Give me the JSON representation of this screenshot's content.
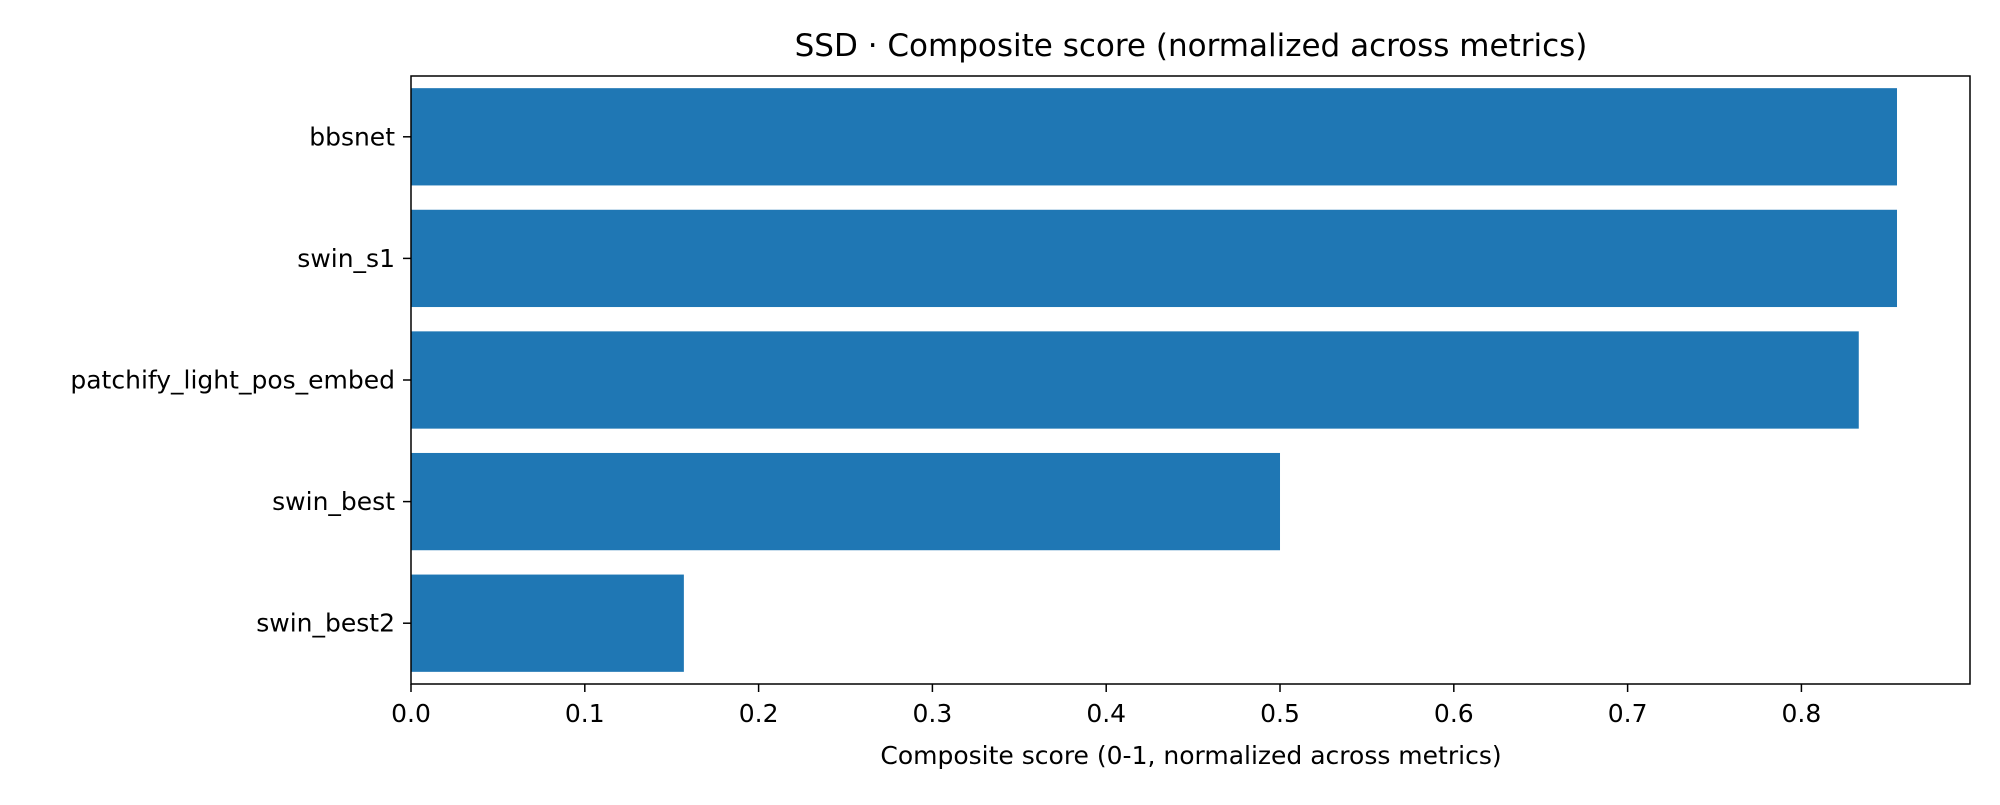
{
  "chart_data": {
    "type": "bar",
    "orientation": "horizontal",
    "title": "SSD · Composite score (normalized across metrics)",
    "xlabel": "Composite score (0-1, normalized across metrics)",
    "ylabel": "",
    "categories": [
      "bbsnet",
      "swin_s1",
      "patchify_light_pos_embed",
      "swin_best",
      "swin_best2"
    ],
    "values": [
      0.855,
      0.855,
      0.833,
      0.5,
      0.157
    ],
    "xlim": [
      0,
      0.897
    ],
    "xticks": [
      "0.0",
      "0.1",
      "0.2",
      "0.3",
      "0.4",
      "0.5",
      "0.6",
      "0.7",
      "0.8"
    ],
    "grid": false,
    "legend": "none",
    "bar_color": "#1f77b4"
  }
}
